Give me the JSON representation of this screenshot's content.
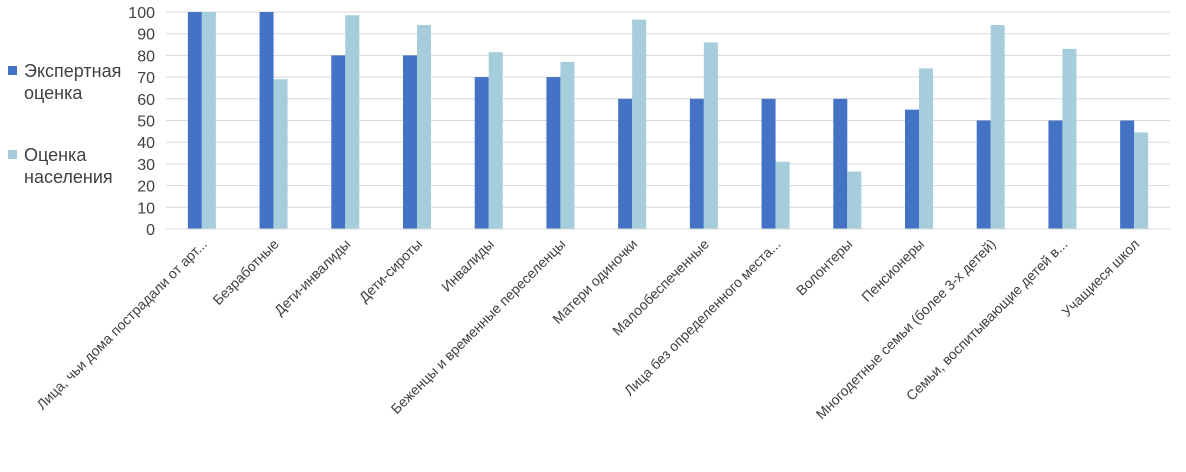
{
  "chart_data": {
    "type": "bar",
    "ylim": [
      0,
      100
    ],
    "yticks": [
      0,
      10,
      20,
      30,
      40,
      50,
      60,
      70,
      80,
      90,
      100
    ],
    "grid": true,
    "legend_position": "left",
    "categories": [
      "Лица, чьи дома пострадали от арт...",
      "Безработные",
      "Дети-инвалиды",
      "Дети-сироты",
      "Инвалиды",
      "Беженцы и временные переселенцы",
      "Матери одиночки",
      "Малообеспеченные",
      "Лица без определенного места...",
      "Волонтеры",
      "Пенсионеры",
      "Многодетные семьи (более 3-х детей)",
      "Семьи, воспитывающие детей в...",
      "Учащиеся школ"
    ],
    "series": [
      {
        "name": "Экспертная оценка",
        "color": "#4472c4",
        "values": [
          100,
          100,
          80,
          80,
          70,
          70,
          60,
          60,
          60,
          60,
          55,
          50,
          50,
          50
        ]
      },
      {
        "name": "Оценка населения",
        "color": "#a5cddb",
        "values": [
          100,
          69,
          98.5,
          94,
          81.5,
          77,
          96.5,
          86,
          31,
          26.5,
          74,
          94,
          83,
          44.5
        ]
      }
    ]
  },
  "legend": [
    {
      "line1": "Экспертная",
      "line2": "оценка",
      "color": "#4472c4"
    },
    {
      "line1": "Оценка",
      "line2": "населения",
      "color": "#a5cddb"
    }
  ]
}
